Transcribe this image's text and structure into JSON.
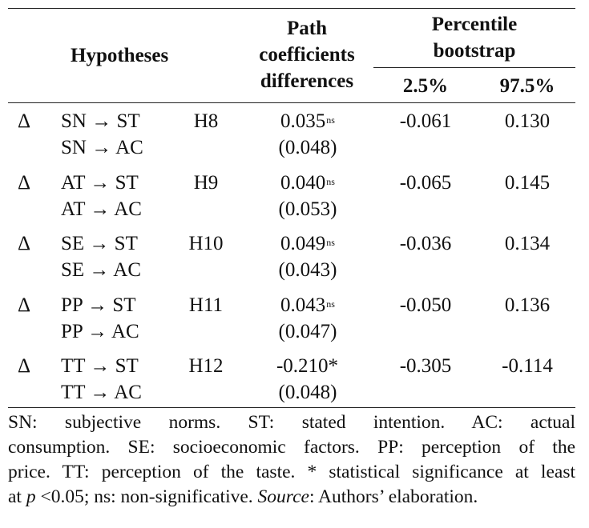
{
  "header": {
    "hypotheses": "Hypotheses",
    "path_line1": "Path",
    "path_line2": "coefficients",
    "path_line3": "differences",
    "bootstrap_line1": "Percentile",
    "bootstrap_line2": "bootstrap",
    "low": "2.5%",
    "high": "97.5%"
  },
  "rows": [
    {
      "delta": "Δ",
      "path1": "SN → ST",
      "path2": "SN → AC",
      "hyp": "H8",
      "coef": "0.035",
      "sig": "ns",
      "se": "(0.048)",
      "low": "-0.061",
      "high": "0.130"
    },
    {
      "delta": "Δ",
      "path1": "AT → ST",
      "path2": "AT → AC",
      "hyp": "H9",
      "coef": "0.040",
      "sig": "ns",
      "se": "(0.053)",
      "low": "-0.065",
      "high": "0.145"
    },
    {
      "delta": "Δ",
      "path1": "SE → ST",
      "path2": "SE → AC",
      "hyp": "H10",
      "coef": "0.049",
      "sig": "ns",
      "se": "(0.043)",
      "low": "-0.036",
      "high": "0.134"
    },
    {
      "delta": "Δ",
      "path1": "PP → ST",
      "path2": "PP → AC",
      "hyp": "H11",
      "coef": "0.043",
      "sig": "ns",
      "se": "(0.047)",
      "low": "-0.050",
      "high": "0.136"
    },
    {
      "delta": "Δ",
      "path1": "TT → ST",
      "path2": "TT → AC",
      "hyp": "H12",
      "coef": "-0.210*",
      "sig": "",
      "se": "(0.048)",
      "low": "-0.305",
      "high": "-0.114"
    }
  ],
  "note": {
    "line1": "SN: subjective norms. ST: stated intention. AC: actual",
    "line2": "consumption. SE: socioeconomic factors. PP: perception of the",
    "line3": "price. TT: perception of the taste. * statistical significance at least",
    "line4_a": "at ",
    "line4_p": "p",
    "line4_b": " <0.05; ns: non-significative. ",
    "line4_source": "Source",
    "line4_c": ": Authors’ elaboration."
  }
}
